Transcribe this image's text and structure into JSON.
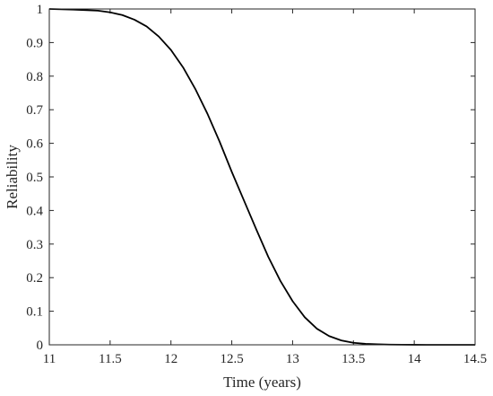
{
  "chart_data": {
    "type": "line",
    "title": "",
    "xlabel": "Time (years)",
    "ylabel": "Reliability",
    "xlim": [
      11,
      14.5
    ],
    "ylim": [
      0,
      1
    ],
    "xticks": [
      11,
      11.5,
      12,
      12.5,
      13,
      13.5,
      14,
      14.5
    ],
    "xtick_labels": [
      "11",
      "11.5",
      "12",
      "12.5",
      "13",
      "13.5",
      "14",
      "14.5"
    ],
    "yticks": [
      0,
      0.1,
      0.2,
      0.3,
      0.4,
      0.5,
      0.6,
      0.7,
      0.8,
      0.9,
      1
    ],
    "ytick_labels": [
      "0",
      "0.1",
      "0.2",
      "0.3",
      "0.4",
      "0.5",
      "0.6",
      "0.7",
      "0.8",
      "0.9",
      "1"
    ],
    "grid": false,
    "line_color": "#000000",
    "series": [
      {
        "x": [
          11.0,
          11.2,
          11.4,
          11.5,
          11.6,
          11.7,
          11.8,
          11.9,
          12.0,
          12.1,
          12.2,
          12.3,
          12.4,
          12.5,
          12.6,
          12.7,
          12.8,
          12.9,
          13.0,
          13.1,
          13.2,
          13.3,
          13.4,
          13.5,
          13.6,
          13.7,
          13.8,
          13.9,
          14.0,
          14.1,
          14.2,
          14.3,
          14.4,
          14.5
        ],
        "y": [
          1.0,
          0.998,
          0.995,
          0.99,
          0.982,
          0.968,
          0.948,
          0.918,
          0.878,
          0.826,
          0.762,
          0.688,
          0.605,
          0.515,
          0.43,
          0.345,
          0.262,
          0.19,
          0.13,
          0.082,
          0.048,
          0.026,
          0.013,
          0.006,
          0.003,
          0.0015,
          0.0007,
          0.0003,
          0.0001,
          0.0,
          0.0,
          0.0,
          0.0,
          0.0
        ]
      }
    ]
  }
}
